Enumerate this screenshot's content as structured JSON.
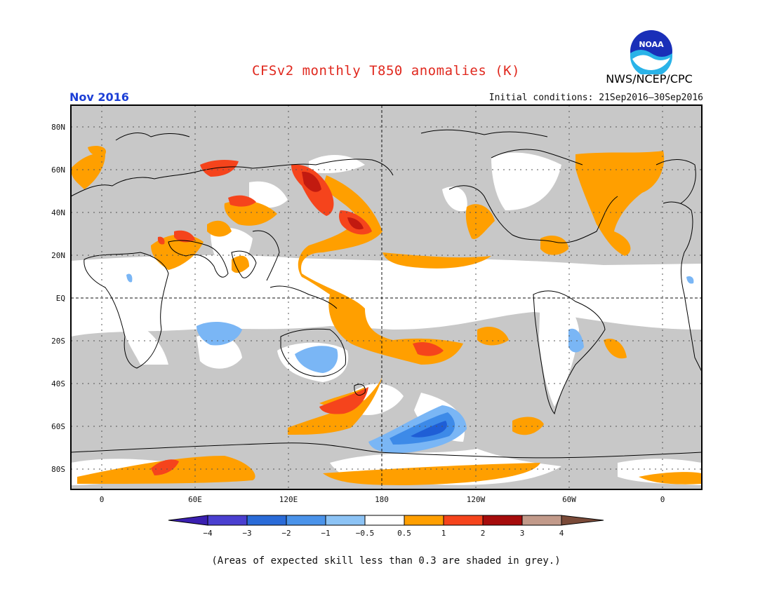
{
  "header": {
    "title": "CFSv2 monthly T850 anomalies (K)",
    "month": "Nov 2016",
    "initial_conditions": "Initial conditions: 21Sep2016–30Sep2016",
    "agency": "NWS/NCEP/CPC",
    "logo_text": "NOAA"
  },
  "map": {
    "lat_labels": [
      "80N",
      "60N",
      "40N",
      "20N",
      "EQ",
      "20S",
      "40S",
      "60S",
      "80S"
    ],
    "lon_labels": [
      "0",
      "60E",
      "120E",
      "180",
      "120W",
      "60W",
      "0"
    ],
    "colors": {
      "grey_low_skill": "#c8c8c8",
      "warm_05_1": "#ff9f00",
      "warm_1_2": "#f5441c",
      "warm_2_3": "#a80000",
      "cool_m1_m05": "#7ab6f5",
      "cool_m2_m1": "#3d8ae8",
      "cool_m3_m2": "#1f5ed6",
      "cool_m4_m3": "#4433cc"
    }
  },
  "legend": {
    "tick_labels": [
      "−4",
      "−3",
      "−2",
      "−1",
      "−0.5",
      "0.5",
      "1",
      "2",
      "3",
      "4"
    ],
    "colors": [
      "#3a1fb0",
      "#4a3fd0",
      "#2a6bd8",
      "#4a93ea",
      "#8cc3f5",
      "#ffffff",
      "#ff9f00",
      "#f5441c",
      "#a60c0c",
      "#c29a8a",
      "#7a4a38"
    ]
  },
  "footnote": "(Areas of expected skill less than 0.3 are shaded in grey.)"
}
